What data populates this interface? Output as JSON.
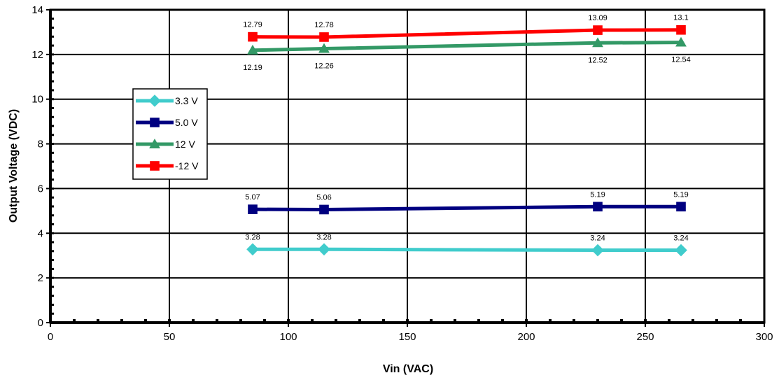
{
  "chart_data": {
    "type": "line",
    "xlabel": "Vin (VAC)",
    "ylabel": "Output Voltage (VDC)",
    "xlim": [
      0,
      300
    ],
    "ylim": [
      0,
      14
    ],
    "x_ticks": [
      0,
      50,
      100,
      150,
      200,
      250,
      300
    ],
    "y_ticks": [
      0,
      2,
      4,
      6,
      8,
      10,
      12,
      14
    ],
    "grid": true,
    "legend_position": "left",
    "series": [
      {
        "name": "3.3 V",
        "color": "#40CCCC",
        "marker": "diamond",
        "x": [
          85,
          115,
          230,
          265
        ],
        "y": [
          3.28,
          3.28,
          3.24,
          3.24
        ],
        "labels": [
          "3.28",
          "3.28",
          "3.24",
          "3.24"
        ],
        "label_pos": [
          "above",
          "above",
          "above",
          "above"
        ]
      },
      {
        "name": "5.0 V",
        "color": "#000080",
        "marker": "square",
        "x": [
          85,
          115,
          230,
          265
        ],
        "y": [
          5.07,
          5.06,
          5.19,
          5.19
        ],
        "labels": [
          "5.07",
          "5.06",
          "5.19",
          "5.19"
        ],
        "label_pos": [
          "above",
          "above",
          "above",
          "above"
        ]
      },
      {
        "name": "12 V",
        "color": "#339966",
        "marker": "triangle",
        "x": [
          85,
          115,
          230,
          265
        ],
        "y": [
          12.19,
          12.26,
          12.52,
          12.54
        ],
        "labels": [
          "12.19",
          "12.26",
          "12.52",
          "12.54"
        ],
        "label_pos": [
          "below",
          "below",
          "below",
          "below"
        ]
      },
      {
        "name": "-12 V",
        "color": "#FF0000",
        "marker": "square",
        "x": [
          85,
          115,
          230,
          265
        ],
        "y": [
          12.79,
          12.78,
          13.09,
          13.1
        ],
        "labels": [
          "12.79",
          "12.78",
          "13.09",
          "13.1"
        ],
        "label_pos": [
          "above",
          "above",
          "above",
          "above"
        ]
      }
    ]
  }
}
